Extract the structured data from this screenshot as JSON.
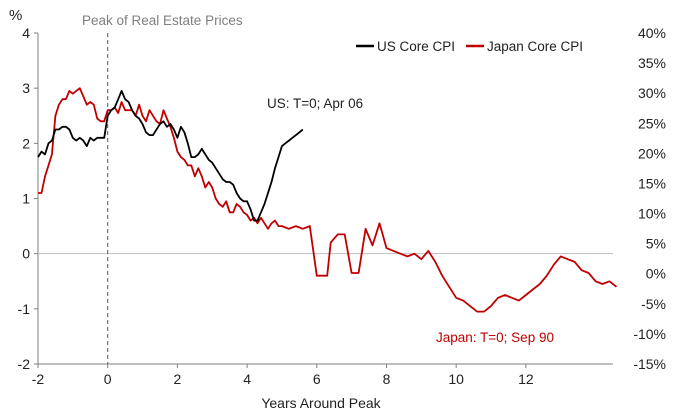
{
  "chart_data": {
    "type": "line",
    "title": "",
    "xlabel": "Years Around Peak",
    "ylabel": "%",
    "xlim": [
      -2,
      14.5
    ],
    "ylim": [
      -2,
      4
    ],
    "right_ylim": [
      -15,
      40
    ],
    "x_ticks": [
      "-2",
      "0",
      "2",
      "4",
      "6",
      "8",
      "10",
      "12"
    ],
    "x_tick_values": [
      -2,
      0,
      2,
      4,
      6,
      8,
      10,
      12
    ],
    "y_ticks": [
      "4",
      "3",
      "2",
      "1",
      "0",
      "-1",
      "-2"
    ],
    "y_tick_values": [
      4,
      3,
      2,
      1,
      0,
      -1,
      -2
    ],
    "right_y_ticks": [
      "40%",
      "35%",
      "30%",
      "25%",
      "20%",
      "15%",
      "10%",
      "5%",
      "0%",
      "-5%",
      "-10%",
      "-15%"
    ],
    "right_y_tick_values": [
      40,
      35,
      30,
      25,
      20,
      15,
      10,
      5,
      0,
      -5,
      -10,
      -15
    ],
    "zero_line": true,
    "grid": false,
    "legend_position": "top-right",
    "annotations": {
      "peak_line_label": "Peak of Real Estate Prices",
      "peak_line_x": 0,
      "us_note": "US: T=0; Apr 06",
      "japan_note": "Japan: T=0; Sep 90"
    },
    "series": [
      {
        "name": "US Core CPI",
        "color": "#000000",
        "x": [
          -2.0,
          -1.9,
          -1.8,
          -1.7,
          -1.6,
          -1.5,
          -1.4,
          -1.3,
          -1.2,
          -1.1,
          -1.0,
          -0.9,
          -0.8,
          -0.7,
          -0.6,
          -0.5,
          -0.4,
          -0.3,
          -0.2,
          -0.1,
          0.0,
          0.1,
          0.2,
          0.3,
          0.4,
          0.5,
          0.6,
          0.7,
          0.8,
          0.9,
          1.0,
          1.1,
          1.2,
          1.3,
          1.4,
          1.5,
          1.6,
          1.7,
          1.8,
          1.9,
          2.0,
          2.1,
          2.2,
          2.3,
          2.4,
          2.5,
          2.6,
          2.7,
          2.8,
          2.9,
          3.0,
          3.1,
          3.2,
          3.3,
          3.4,
          3.5,
          3.6,
          3.7,
          3.8,
          3.9,
          4.0,
          4.1,
          4.2,
          4.3,
          4.4,
          4.5,
          4.6,
          4.7,
          4.8,
          4.9,
          5.0,
          5.1,
          5.2,
          5.3,
          5.4,
          5.5,
          5.6
        ],
        "values": [
          1.75,
          1.85,
          1.8,
          2.0,
          2.05,
          2.25,
          2.25,
          2.3,
          2.3,
          2.25,
          2.1,
          2.05,
          2.1,
          2.05,
          1.95,
          2.1,
          2.05,
          2.1,
          2.1,
          2.1,
          2.5,
          2.6,
          2.65,
          2.8,
          2.95,
          2.8,
          2.75,
          2.6,
          2.5,
          2.45,
          2.35,
          2.2,
          2.15,
          2.15,
          2.25,
          2.35,
          2.4,
          2.3,
          2.35,
          2.25,
          2.1,
          2.3,
          2.2,
          2.0,
          1.75,
          1.75,
          1.8,
          1.9,
          1.8,
          1.7,
          1.65,
          1.55,
          1.45,
          1.35,
          1.3,
          1.3,
          1.25,
          1.1,
          1.0,
          0.95,
          0.95,
          0.8,
          0.6,
          0.6,
          0.75,
          0.9,
          1.1,
          1.3,
          1.55,
          1.75,
          1.95,
          2.0,
          2.05,
          2.1,
          2.15,
          2.2,
          2.25
        ]
      },
      {
        "name": "Japan Core CPI",
        "color": "#c00000",
        "x": [
          -2.0,
          -1.9,
          -1.8,
          -1.7,
          -1.6,
          -1.5,
          -1.4,
          -1.3,
          -1.2,
          -1.1,
          -1.0,
          -0.9,
          -0.8,
          -0.7,
          -0.6,
          -0.5,
          -0.4,
          -0.3,
          -0.2,
          -0.1,
          0.0,
          0.1,
          0.2,
          0.3,
          0.4,
          0.5,
          0.6,
          0.7,
          0.8,
          0.9,
          1.0,
          1.1,
          1.2,
          1.3,
          1.4,
          1.5,
          1.6,
          1.7,
          1.8,
          1.9,
          2.0,
          2.1,
          2.2,
          2.3,
          2.4,
          2.5,
          2.6,
          2.7,
          2.8,
          2.9,
          3.0,
          3.1,
          3.2,
          3.3,
          3.4,
          3.5,
          3.6,
          3.7,
          3.8,
          3.9,
          4.0,
          4.1,
          4.2,
          4.3,
          4.4,
          4.5,
          4.6,
          4.7,
          4.8,
          4.9,
          5.0,
          5.2,
          5.4,
          5.6,
          5.8,
          6.0,
          6.2,
          6.3,
          6.4,
          6.6,
          6.8,
          7.0,
          7.2,
          7.4,
          7.6,
          7.8,
          8.0,
          8.2,
          8.4,
          8.6,
          8.8,
          9.0,
          9.2,
          9.4,
          9.6,
          9.8,
          10.0,
          10.2,
          10.4,
          10.6,
          10.8,
          11.0,
          11.2,
          11.4,
          11.6,
          11.8,
          12.0,
          12.2,
          12.4,
          12.6,
          12.8,
          13.0,
          13.2,
          13.4,
          13.6,
          13.8,
          14.0,
          14.2,
          14.4,
          14.6
        ],
        "values": [
          1.1,
          1.1,
          1.4,
          1.6,
          1.8,
          2.5,
          2.7,
          2.8,
          2.8,
          2.95,
          2.9,
          2.95,
          3.0,
          2.85,
          2.7,
          2.75,
          2.7,
          2.45,
          2.4,
          2.4,
          2.6,
          2.6,
          2.65,
          2.55,
          2.75,
          2.6,
          2.6,
          2.6,
          2.5,
          2.7,
          2.5,
          2.4,
          2.6,
          2.5,
          2.4,
          2.35,
          2.6,
          2.45,
          2.3,
          2.1,
          1.85,
          1.75,
          1.7,
          1.6,
          1.6,
          1.4,
          1.55,
          1.4,
          1.2,
          1.3,
          1.2,
          1.0,
          0.9,
          0.85,
          0.95,
          0.75,
          0.75,
          0.9,
          0.85,
          0.75,
          0.7,
          0.6,
          0.65,
          0.55,
          0.65,
          0.55,
          0.45,
          0.55,
          0.6,
          0.5,
          0.5,
          0.45,
          0.5,
          0.45,
          0.5,
          -0.4,
          -0.4,
          -0.4,
          0.2,
          0.35,
          0.35,
          -0.35,
          -0.35,
          0.45,
          0.15,
          0.55,
          0.1,
          0.05,
          0.0,
          -0.05,
          0.0,
          -0.1,
          0.05,
          -0.15,
          -0.4,
          -0.6,
          -0.8,
          -0.85,
          -0.95,
          -1.05,
          -1.05,
          -0.95,
          -0.8,
          -0.75,
          -0.8,
          -0.85,
          -0.75,
          -0.65,
          -0.55,
          -0.4,
          -0.2,
          -0.05,
          -0.1,
          -0.15,
          -0.3,
          -0.35,
          -0.5,
          -0.55,
          -0.5,
          -0.6
        ]
      }
    ]
  }
}
